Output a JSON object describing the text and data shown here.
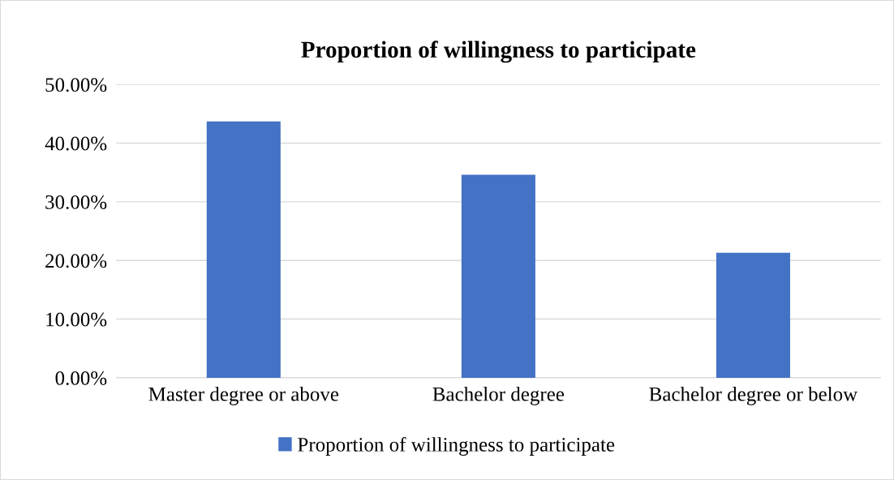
{
  "chart_data": {
    "type": "bar",
    "title": "Proportion of willingness to participate",
    "categories": [
      "Master degree or above",
      "Bachelor degree",
      "Bachelor degree or below"
    ],
    "series": [
      {
        "name": "Proportion of willingness to participate",
        "color": "#4472c4",
        "values": [
          43.7,
          34.6,
          21.3
        ]
      }
    ],
    "ylim": [
      0,
      50
    ],
    "yticks": [
      {
        "value": 0,
        "label": "0.00%"
      },
      {
        "value": 10,
        "label": "10.00%"
      },
      {
        "value": 20,
        "label": "20.00%"
      },
      {
        "value": 30,
        "label": "30.00%"
      },
      {
        "value": 40,
        "label": "40.00%"
      },
      {
        "value": 50,
        "label": "50.00%"
      }
    ],
    "grid": "y",
    "legend": "bottom"
  }
}
